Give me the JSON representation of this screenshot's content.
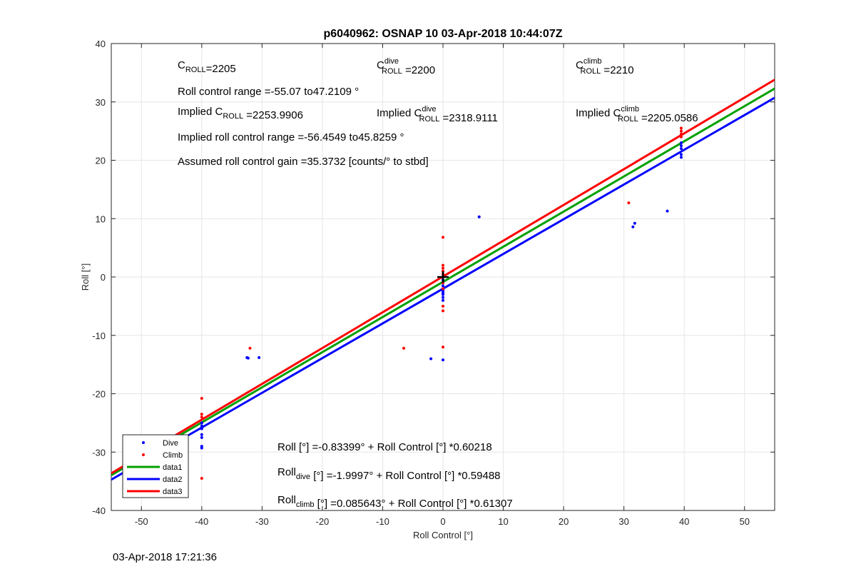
{
  "chart_data": {
    "type": "scatter",
    "title": "p6040962: OSNAP 10 03-Apr-2018 10:44:07Z",
    "xlabel": "Roll Control [°]",
    "ylabel": "Roll [°]",
    "xlim": [
      -55,
      55
    ],
    "ylim": [
      -40,
      40
    ],
    "xticks": [
      -50,
      -40,
      -30,
      -20,
      -10,
      0,
      10,
      20,
      30,
      40,
      50
    ],
    "yticks": [
      -40,
      -30,
      -20,
      -10,
      0,
      10,
      20,
      30,
      40
    ],
    "xtick_labels": [
      "-50",
      "-40",
      "-30",
      "-20",
      "-10",
      "0",
      "10",
      "20",
      "30",
      "40",
      "50"
    ],
    "ytick_labels": [
      "-40",
      "-30",
      "-20",
      "-10",
      "0",
      "10",
      "20",
      "30",
      "40"
    ],
    "grid": true,
    "legend_position": "bottom-left",
    "legend": [
      {
        "label": "Dive",
        "kind": "marker",
        "color": "#0000ff"
      },
      {
        "label": "Climb",
        "kind": "marker",
        "color": "#ff0000"
      },
      {
        "label": "data1",
        "kind": "line",
        "color": "#00a000"
      },
      {
        "label": "data2",
        "kind": "line",
        "color": "#0000ff"
      },
      {
        "label": "data3",
        "kind": "line",
        "color": "#ff0000"
      }
    ],
    "series": [
      {
        "name": "Dive",
        "kind": "scatter",
        "color": "#0000ff",
        "points": [
          [
            -50,
            -28.5
          ],
          [
            -40,
            -25
          ],
          [
            -40,
            -26
          ],
          [
            -40,
            -27
          ],
          [
            -40,
            -27.5
          ],
          [
            -40,
            -29
          ],
          [
            -40,
            -29.3
          ],
          [
            -40,
            -25.5
          ],
          [
            -32.5,
            -13.8
          ],
          [
            -32.3,
            -13.9
          ],
          [
            -30.5,
            -13.8
          ],
          [
            -2,
            -14
          ],
          [
            0,
            -14.2
          ],
          [
            0,
            -1
          ],
          [
            0,
            -1.5
          ],
          [
            0,
            -2
          ],
          [
            0,
            -2.5
          ],
          [
            0,
            -3
          ],
          [
            0,
            -3.5
          ],
          [
            0,
            -4
          ],
          [
            0,
            -0.5
          ],
          [
            0,
            -2.2
          ],
          [
            0,
            -2.8
          ],
          [
            6,
            10.3
          ],
          [
            31.5,
            8.6
          ],
          [
            31.8,
            9.2
          ],
          [
            37.2,
            11.3
          ],
          [
            39.5,
            23
          ],
          [
            39.5,
            22.5
          ],
          [
            39.5,
            21
          ],
          [
            39.5,
            20.5
          ],
          [
            39.5,
            22
          ]
        ]
      },
      {
        "name": "Climb",
        "kind": "scatter",
        "color": "#ff0000",
        "points": [
          [
            -40,
            -20.8
          ],
          [
            -40,
            -23.5
          ],
          [
            -40,
            -24
          ],
          [
            -40,
            -34.5
          ],
          [
            -32,
            -12.2
          ],
          [
            -6.5,
            -12.2
          ],
          [
            0,
            -12
          ],
          [
            0,
            6.8
          ],
          [
            0,
            2
          ],
          [
            0,
            1.5
          ],
          [
            0,
            1
          ],
          [
            0,
            0.5
          ],
          [
            0,
            0
          ],
          [
            0,
            -1
          ],
          [
            0,
            -2
          ],
          [
            0,
            -5
          ],
          [
            0,
            -5.8
          ],
          [
            30.8,
            12.7
          ],
          [
            39.5,
            25.5
          ],
          [
            39.5,
            25
          ],
          [
            39.5,
            24.5
          ],
          [
            39.5,
            24
          ]
        ]
      },
      {
        "name": "data1",
        "kind": "line",
        "color": "#00a000",
        "intercept": -0.83399,
        "slope": 0.60218
      },
      {
        "name": "data2",
        "kind": "line",
        "color": "#0000ff",
        "intercept": -1.9997,
        "slope": 0.59488
      },
      {
        "name": "data3",
        "kind": "line",
        "color": "#ff0000",
        "intercept": 0.085643,
        "slope": 0.61307
      }
    ],
    "origin_marker": [
      0,
      0
    ],
    "annotations": {
      "c_roll": {
        "base": "C",
        "sub": "ROLL",
        "value": "=2205"
      },
      "c_roll_dive": {
        "base": "C",
        "sup": "dive",
        "sub": "ROLL",
        "value": "=2200"
      },
      "c_roll_climb": {
        "base": "C",
        "sup": "climb",
        "sub": "ROLL",
        "value": "=2210"
      },
      "roll_control_range": "Roll control range =-55.07 to47.2109 °",
      "implied_c_roll": {
        "prefix": "Implied C",
        "sub": "ROLL",
        "value": "=2253.9906"
      },
      "implied_c_roll_dive": {
        "prefix": "Implied C",
        "sup": "dive",
        "sub": "ROLL",
        "value": "=2318.9111"
      },
      "implied_c_roll_climb": {
        "prefix": "Implied C",
        "sup": "climb",
        "sub": "ROLL",
        "value": "=2205.0586"
      },
      "implied_range": "Implied roll control range =-56.4549 to45.8259 °",
      "gain": "Assumed roll control gain =35.3732 [counts/° to stbd]",
      "fit_all": "Roll [°] =-0.83399° + Roll Control [°] *0.60218",
      "fit_dive": {
        "base": "Roll",
        "sub": "dive",
        "rest": " [°] =-1.9997° + Roll Control [°] *0.59488"
      },
      "fit_climb": {
        "base": "Roll",
        "sub": "climb",
        "rest": " [°] =0.085643° + Roll Control [°] *0.61307"
      }
    }
  },
  "footer": {
    "timestamp": "03-Apr-2018 17:21:36"
  }
}
